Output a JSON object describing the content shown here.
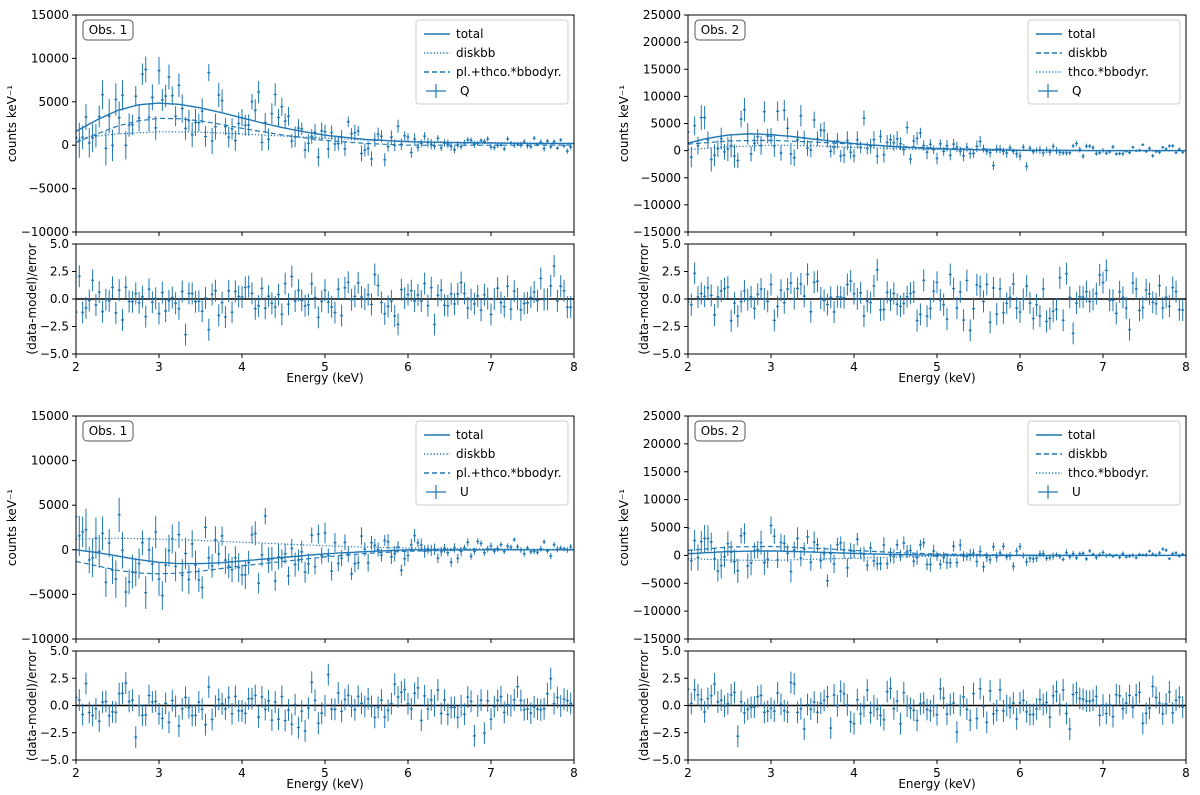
{
  "colors": {
    "series": "#1f77b4",
    "axis": "#000000",
    "frame": "#333333"
  },
  "chart_data": [
    {
      "type": "line",
      "panel": "top-left",
      "annotation": "Obs. 1",
      "xlabel": "Energy (keV)",
      "ylabel": "counts keV⁻¹",
      "resid_ylabel": "(data-model)/error",
      "xlim": [
        2,
        8
      ],
      "ylim": [
        -10000,
        15000
      ],
      "resid_ylim": [
        -5,
        5
      ],
      "xticks": [
        2,
        3,
        4,
        5,
        6,
        7,
        8
      ],
      "xtick_labels": [
        "2",
        "3",
        "4",
        "5",
        "6",
        "7",
        "8"
      ],
      "yticks": [
        -10000,
        -5000,
        0,
        5000,
        10000,
        15000
      ],
      "ytick_labels": [
        "−10000",
        "−5000",
        "0",
        "5000",
        "10000",
        "15000"
      ],
      "resid_yticks": [
        -5,
        -2.5,
        0,
        2.5,
        5
      ],
      "resid_ytick_labels": [
        "−5.0",
        "−2.5",
        "0.0",
        "2.5",
        "5.0"
      ],
      "legend": {
        "placement": "top-right",
        "entries": [
          {
            "label": "total",
            "style": "solid"
          },
          {
            "label": "diskbb",
            "style": "dotted"
          },
          {
            "label": "pl.+thco.*bbodyr.",
            "style": "dashed"
          },
          {
            "label": "Q",
            "style": "errorbar"
          }
        ]
      },
      "models": [
        {
          "style": "solid",
          "x": [
            2.0,
            2.25,
            2.5,
            2.75,
            3.0,
            3.25,
            3.5,
            3.75,
            4.0,
            4.25,
            4.5,
            4.75,
            5.0,
            5.5,
            6.0,
            6.5,
            7.0,
            7.5,
            8.0
          ],
          "y": [
            1600,
            2900,
            4000,
            4650,
            4850,
            4700,
            4300,
            3750,
            3150,
            2550,
            2000,
            1550,
            1150,
            650,
            400,
            300,
            250,
            200,
            200
          ]
        },
        {
          "style": "dotted",
          "x": [
            2.0,
            2.5,
            3.0,
            3.5,
            4.0,
            4.5,
            5.0,
            5.5,
            6.0,
            6.5,
            7.0,
            7.5,
            8.0
          ],
          "y": [
            800,
            1300,
            1550,
            1500,
            1300,
            1050,
            800,
            600,
            450,
            350,
            300,
            250,
            200
          ]
        },
        {
          "style": "dashed",
          "x": [
            2.0,
            2.25,
            2.5,
            2.75,
            3.0,
            3.25,
            3.5,
            3.75,
            4.0,
            4.25,
            4.5,
            4.75,
            5.0,
            5.5,
            6.0,
            7.0,
            8.0
          ],
          "y": [
            300,
            1300,
            2200,
            2800,
            3100,
            3050,
            2800,
            2400,
            1950,
            1550,
            1150,
            850,
            550,
            200,
            0,
            0,
            0
          ]
        }
      ],
      "data_seed": 11,
      "data_noise": 2200,
      "data_err": 1500,
      "resid_seed": 12
    },
    {
      "type": "line",
      "panel": "top-right",
      "annotation": "Obs. 2",
      "xlabel": "Energy (keV)",
      "ylabel": "counts keV⁻¹",
      "resid_ylabel": "(data-model)/error",
      "xlim": [
        2,
        8
      ],
      "ylim": [
        -15000,
        25000
      ],
      "resid_ylim": [
        -5,
        5
      ],
      "xticks": [
        2,
        3,
        4,
        5,
        6,
        7,
        8
      ],
      "xtick_labels": [
        "2",
        "3",
        "4",
        "5",
        "6",
        "7",
        "8"
      ],
      "yticks": [
        -15000,
        -10000,
        -5000,
        0,
        5000,
        10000,
        15000,
        20000,
        25000
      ],
      "ytick_labels": [
        "−15000",
        "−10000",
        "−5000",
        "0",
        "5000",
        "10000",
        "15000",
        "20000",
        "25000"
      ],
      "resid_yticks": [
        -5,
        -2.5,
        0,
        2.5,
        5
      ],
      "resid_ytick_labels": [
        "−5.0",
        "−2.5",
        "0.0",
        "2.5",
        "5.0"
      ],
      "legend": {
        "placement": "top-right",
        "entries": [
          {
            "label": "total",
            "style": "solid"
          },
          {
            "label": "diskbb",
            "style": "dashed"
          },
          {
            "label": "thco.*bbodyr.",
            "style": "dotted"
          },
          {
            "label": "Q",
            "style": "errorbar"
          }
        ]
      },
      "models": [
        {
          "style": "solid",
          "x": [
            2.0,
            2.25,
            2.5,
            2.75,
            3.0,
            3.25,
            3.5,
            3.75,
            4.0,
            4.5,
            5.0,
            5.5,
            6.0,
            7.0,
            8.0
          ],
          "y": [
            1400,
            2300,
            2900,
            3100,
            2950,
            2600,
            2150,
            1700,
            1300,
            700,
            350,
            150,
            50,
            0,
            0
          ]
        },
        {
          "style": "dashed",
          "x": [
            2.0,
            2.5,
            3.0,
            3.5,
            4.0,
            4.5,
            5.0,
            5.5,
            6.0,
            7.0,
            8.0
          ],
          "y": [
            1200,
            1800,
            1900,
            1600,
            1200,
            800,
            450,
            250,
            100,
            0,
            0
          ]
        },
        {
          "style": "dotted",
          "x": [
            2.0,
            2.5,
            3.0,
            3.5,
            4.0,
            4.5,
            5.0,
            6.0,
            7.0,
            8.0
          ],
          "y": [
            200,
            700,
            1000,
            900,
            600,
            350,
            200,
            50,
            0,
            0
          ]
        }
      ],
      "data_seed": 21,
      "data_noise": 2600,
      "data_err": 1800,
      "resid_seed": 22
    },
    {
      "type": "line",
      "panel": "bottom-left",
      "annotation": "Obs. 1",
      "xlabel": "Energy (keV)",
      "ylabel": "counts keV⁻¹",
      "resid_ylabel": "(data-model)/error",
      "xlim": [
        2,
        8
      ],
      "ylim": [
        -10000,
        15000
      ],
      "resid_ylim": [
        -5,
        5
      ],
      "xticks": [
        2,
        3,
        4,
        5,
        6,
        7,
        8
      ],
      "xtick_labels": [
        "2",
        "3",
        "4",
        "5",
        "6",
        "7",
        "8"
      ],
      "yticks": [
        -10000,
        -5000,
        0,
        5000,
        10000,
        15000
      ],
      "ytick_labels": [
        "−10000",
        "−5000",
        "0",
        "5000",
        "10000",
        "15000"
      ],
      "resid_yticks": [
        -5,
        -2.5,
        0,
        2.5,
        5
      ],
      "resid_ytick_labels": [
        "−5.0",
        "−2.5",
        "0.0",
        "2.5",
        "5.0"
      ],
      "legend": {
        "placement": "top-right",
        "entries": [
          {
            "label": "total",
            "style": "solid"
          },
          {
            "label": "diskbb",
            "style": "dotted"
          },
          {
            "label": "pl.+thco.*bbodyr.",
            "style": "dashed"
          },
          {
            "label": "U",
            "style": "errorbar"
          }
        ]
      },
      "models": [
        {
          "style": "solid",
          "x": [
            2.0,
            2.25,
            2.5,
            2.75,
            3.0,
            3.25,
            3.5,
            3.75,
            4.0,
            4.25,
            4.5,
            4.75,
            5.0,
            5.5,
            6.0,
            7.0,
            8.0
          ],
          "y": [
            0,
            -300,
            -700,
            -1100,
            -1400,
            -1550,
            -1550,
            -1450,
            -1250,
            -1050,
            -850,
            -650,
            -450,
            -200,
            0,
            0,
            0
          ]
        },
        {
          "style": "dotted",
          "x": [
            2.0,
            2.5,
            3.0,
            3.5,
            4.0,
            4.5,
            5.0,
            5.5,
            6.0,
            6.5,
            7.0,
            7.5,
            8.0
          ],
          "y": [
            1200,
            1300,
            1200,
            1050,
            850,
            650,
            450,
            300,
            200,
            150,
            100,
            50,
            50
          ]
        },
        {
          "style": "dashed",
          "x": [
            2.0,
            2.25,
            2.5,
            2.75,
            3.0,
            3.25,
            3.5,
            3.75,
            4.0,
            4.5,
            5.0,
            5.5,
            6.0,
            7.0,
            8.0
          ],
          "y": [
            -1300,
            -1800,
            -2300,
            -2600,
            -2700,
            -2600,
            -2400,
            -2100,
            -1800,
            -1300,
            -800,
            -400,
            -150,
            0,
            0
          ]
        }
      ],
      "data_seed": 31,
      "data_noise": 2300,
      "data_err": 1700,
      "resid_seed": 32
    },
    {
      "type": "line",
      "panel": "bottom-right",
      "annotation": "Obs. 2",
      "xlabel": "Energy (keV)",
      "ylabel": "counts keV⁻¹",
      "resid_ylabel": "(data-model)/error",
      "xlim": [
        2,
        8
      ],
      "ylim": [
        -15000,
        25000
      ],
      "resid_ylim": [
        -5,
        5
      ],
      "xticks": [
        2,
        3,
        4,
        5,
        6,
        7,
        8
      ],
      "xtick_labels": [
        "2",
        "3",
        "4",
        "5",
        "6",
        "7",
        "8"
      ],
      "yticks": [
        -15000,
        -10000,
        -5000,
        0,
        5000,
        10000,
        15000,
        20000,
        25000
      ],
      "ytick_labels": [
        "−15000",
        "−10000",
        "−5000",
        "0",
        "5000",
        "10000",
        "15000",
        "20000",
        "25000"
      ],
      "resid_yticks": [
        -5,
        -2.5,
        0,
        2.5,
        5
      ],
      "resid_ytick_labels": [
        "−5.0",
        "−2.5",
        "0.0",
        "2.5",
        "5.0"
      ],
      "legend": {
        "placement": "top-right",
        "entries": [
          {
            "label": "total",
            "style": "solid"
          },
          {
            "label": "diskbb",
            "style": "dashed"
          },
          {
            "label": "thco.*bbodyr.",
            "style": "dotted"
          },
          {
            "label": "U",
            "style": "errorbar"
          }
        ]
      },
      "models": [
        {
          "style": "solid",
          "x": [
            2.0,
            2.5,
            3.0,
            3.5,
            4.0,
            4.5,
            5.0,
            6.0,
            7.0,
            8.0
          ],
          "y": [
            300,
            700,
            800,
            600,
            350,
            150,
            50,
            0,
            0,
            0
          ]
        },
        {
          "style": "dashed",
          "x": [
            2.0,
            2.5,
            3.0,
            3.5,
            4.0,
            4.5,
            5.0,
            6.0,
            7.0,
            8.0
          ],
          "y": [
            900,
            1500,
            1600,
            1300,
            900,
            500,
            250,
            50,
            0,
            0
          ]
        },
        {
          "style": "dotted",
          "x": [
            2.0,
            2.5,
            3.0,
            3.5,
            4.0,
            4.5,
            5.0,
            6.0,
            7.0,
            8.0
          ],
          "y": [
            -600,
            -850,
            -900,
            -700,
            -500,
            -300,
            -150,
            -50,
            0,
            0
          ]
        }
      ],
      "data_seed": 41,
      "data_noise": 2400,
      "data_err": 1800,
      "resid_seed": 42
    }
  ]
}
